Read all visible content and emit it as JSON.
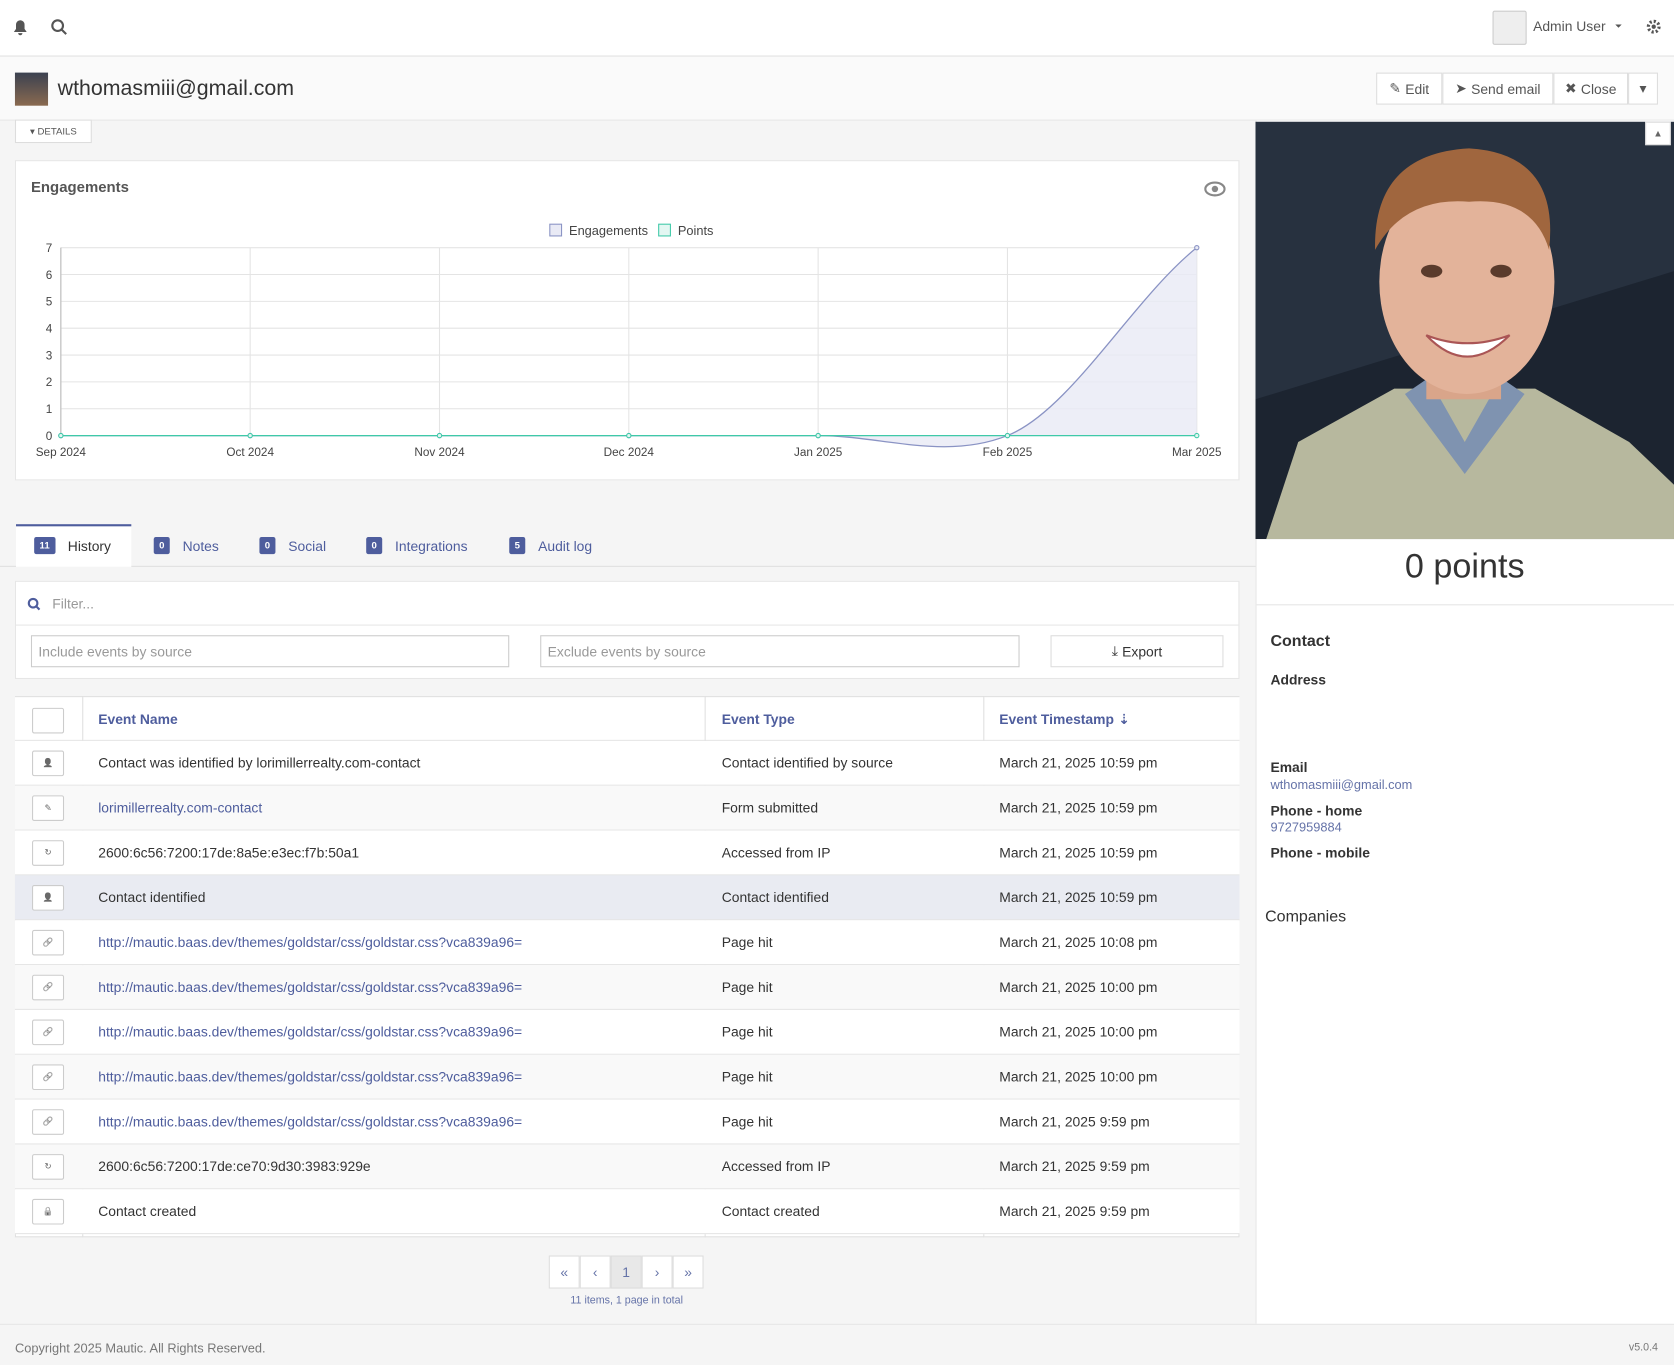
{
  "topbar": {
    "user": "Admin User"
  },
  "header": {
    "title": "wthomasmiii@gmail.com",
    "buttons": [
      "Edit",
      "Send email",
      "Close"
    ]
  },
  "details_toggle": "DETAILS",
  "chart_data": {
    "type": "line",
    "title": "Engagements",
    "categories": [
      "Sep 2024",
      "Oct 2024",
      "Nov 2024",
      "Dec 2024",
      "Jan 2025",
      "Feb 2025",
      "Mar 2025"
    ],
    "series": [
      {
        "name": "Engagements",
        "color": "#8a93c4",
        "fill": "#e9eaf5",
        "values": [
          0,
          0,
          0,
          0,
          0,
          0,
          7
        ]
      },
      {
        "name": "Points",
        "color": "#3fc9a8",
        "fill": "#e3f7f2",
        "values": [
          0,
          0,
          0,
          0,
          0,
          0,
          0
        ]
      }
    ],
    "ylim": [
      0,
      7
    ],
    "yticks": [
      0,
      1,
      2,
      3,
      4,
      5,
      6,
      7
    ],
    "grid": true,
    "legend": "top"
  },
  "tabs": [
    {
      "count": 11,
      "label": "History"
    },
    {
      "count": 0,
      "label": "Notes"
    },
    {
      "count": 0,
      "label": "Social"
    },
    {
      "count": 0,
      "label": "Integrations"
    },
    {
      "count": 5,
      "label": "Audit log"
    }
  ],
  "filters": {
    "search": "Filter...",
    "include": "Include events by source",
    "exclude": "Exclude events by source",
    "export": "Export"
  },
  "table": {
    "headers": [
      "Event Name",
      "Event Type",
      "Event Timestamp"
    ],
    "rows": [
      {
        "name": "Contact was identified by lorimillerrealty.com-contact",
        "type": "Contact identified by source",
        "timestamp": "March 21, 2025 10:59 pm",
        "link": false
      },
      {
        "name": "lorimillerrealty.com-contact",
        "type": "Form submitted",
        "timestamp": "March 21, 2025 10:59 pm",
        "link": true
      },
      {
        "name": "2600:6c56:7200:17de:8a5e:e3ec:f7b:50a1",
        "type": "Accessed from IP",
        "timestamp": "March 21, 2025 10:59 pm",
        "link": false
      },
      {
        "name": "Contact identified",
        "type": "Contact identified",
        "timestamp": "March 21, 2025 10:59 pm",
        "link": false
      },
      {
        "name": "http://mautic.baas.dev/themes/goldstar/css/goldstar.css?vca839a96=",
        "type": "Page hit",
        "timestamp": "March 21, 2025 10:08 pm",
        "link": true
      },
      {
        "name": "http://mautic.baas.dev/themes/goldstar/css/goldstar.css?vca839a96=",
        "type": "Page hit",
        "timestamp": "March 21, 2025 10:00 pm",
        "link": true
      },
      {
        "name": "http://mautic.baas.dev/themes/goldstar/css/goldstar.css?vca839a96=",
        "type": "Page hit",
        "timestamp": "March 21, 2025 10:00 pm",
        "link": true
      },
      {
        "name": "http://mautic.baas.dev/themes/goldstar/css/goldstar.css?vca839a96=",
        "type": "Page hit",
        "timestamp": "March 21, 2025 10:00 pm",
        "link": true
      },
      {
        "name": "http://mautic.baas.dev/themes/goldstar/css/goldstar.css?vca839a96=",
        "type": "Page hit",
        "timestamp": "March 21, 2025 9:59 pm",
        "link": true
      },
      {
        "name": "2600:6c56:7200:17de:ce70:9d30:3983:929e",
        "type": "Accessed from IP",
        "timestamp": "March 21, 2025 9:59 pm",
        "link": false
      },
      {
        "name": "Contact created",
        "type": "Contact created",
        "timestamp": "March 21, 2025 9:59 pm",
        "link": false
      }
    ]
  },
  "pagination": {
    "buttons": [
      "«",
      "‹",
      "1",
      "›",
      "»"
    ],
    "summary": "11 items, 1 page in total"
  },
  "sidebar": {
    "points": "0 points",
    "section": "Contact",
    "address_label": "Address",
    "email_label": "Email",
    "email": "wthomasmiii@gmail.com",
    "phone_home_label": "Phone - home",
    "phone_home": "9727959884",
    "phone_mobile_label": "Phone - mobile",
    "companies": "Companies"
  },
  "footer": {
    "copyright": "Copyright 2025 Mautic. All Rights Reserved.",
    "version": "v5.0.4"
  }
}
